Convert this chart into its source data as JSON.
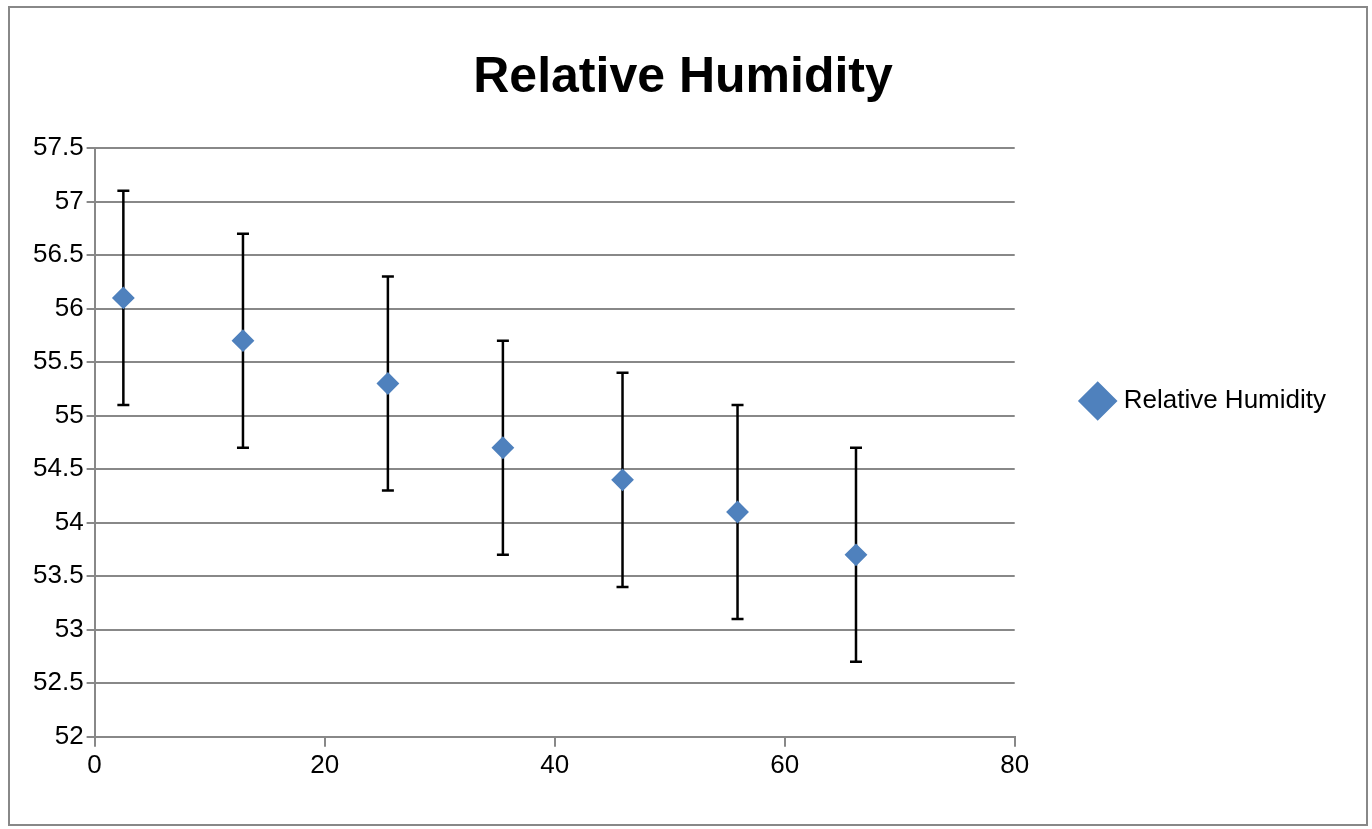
{
  "chart_data": {
    "type": "scatter",
    "title": "Relative Humidity",
    "x": [
      2.5,
      12.9,
      25.5,
      35.5,
      45.9,
      55.9,
      66.2
    ],
    "series": [
      {
        "name": "Relative Humidity",
        "color": "#4f81bd",
        "values": [
          56.1,
          55.7,
          55.3,
          54.7,
          54.4,
          54.1,
          53.7
        ],
        "errors": [
          1,
          1,
          1,
          1,
          1,
          1,
          1
        ]
      }
    ],
    "xlim": [
      0,
      80
    ],
    "xticks": [
      0,
      20,
      40,
      60,
      80
    ],
    "ylim": [
      52,
      57.5
    ],
    "yticks": [
      52,
      52.5,
      53,
      53.5,
      54,
      54.5,
      55,
      55.5,
      56,
      56.5,
      57,
      57.5
    ],
    "grid": "y",
    "legend": "right",
    "marker": "diamond"
  }
}
